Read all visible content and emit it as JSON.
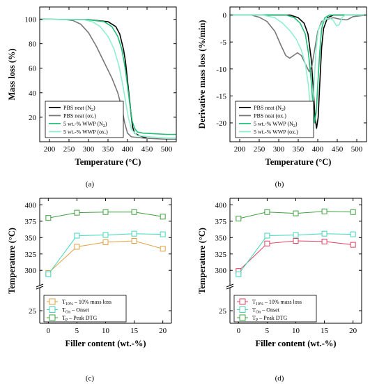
{
  "chart_data": [
    {
      "panel": "(a)",
      "type": "line",
      "xlabel": "Temperature (°C)",
      "ylabel": "Mass loss (%)",
      "xlim": [
        175,
        525
      ],
      "ylim": [
        0,
        110
      ],
      "xticks": [
        200,
        250,
        300,
        350,
        400,
        450,
        500
      ],
      "yticks": [
        20,
        40,
        60,
        80,
        100
      ],
      "legend_position": "bottom-left",
      "series": [
        {
          "name": "PBS neat (N2)",
          "label": {
            "main": "PBS neat (N",
            "sub": "2",
            "tail": ")"
          },
          "color": "#000000",
          "points": [
            [
              175,
              100
            ],
            [
              300,
              99.6
            ],
            [
              350,
              98
            ],
            [
              370,
              94
            ],
            [
              380,
              88
            ],
            [
              390,
              75
            ],
            [
              395,
              65
            ],
            [
              400,
              50
            ],
            [
              405,
              35
            ],
            [
              410,
              20
            ],
            [
              413,
              12
            ],
            [
              418,
              7
            ],
            [
              430,
              5
            ],
            [
              440,
              4
            ],
            [
              450,
              3
            ]
          ]
        },
        {
          "name": "PBS neat (ox.)",
          "label": {
            "main": "PBS neat (ox.)",
            "sub": "",
            "tail": ""
          },
          "color": "#777777",
          "points": [
            [
              175,
              100
            ],
            [
              240,
              99.8
            ],
            [
              260,
              99
            ],
            [
              280,
              96
            ],
            [
              300,
              89
            ],
            [
              320,
              78
            ],
            [
              340,
              65
            ],
            [
              360,
              52
            ],
            [
              375,
              40
            ],
            [
              385,
              28
            ],
            [
              393,
              15
            ],
            [
              400,
              7
            ],
            [
              410,
              4
            ],
            [
              440,
              3
            ],
            [
              470,
              2.5
            ],
            [
              500,
              2
            ],
            [
              525,
              2
            ]
          ]
        },
        {
          "name": "5 wt.-% WWP (N2)",
          "label": {
            "main": "5 wt.-% WWP (N",
            "sub": "2",
            "tail": ")"
          },
          "color": "#1fbf76",
          "points": [
            [
              175,
              100
            ],
            [
              300,
              99.6
            ],
            [
              340,
              98
            ],
            [
              360,
              94
            ],
            [
              375,
              86
            ],
            [
              385,
              76
            ],
            [
              393,
              62
            ],
            [
              400,
              46
            ],
            [
              406,
              30
            ],
            [
              412,
              17
            ],
            [
              418,
              11
            ],
            [
              425,
              8
            ],
            [
              440,
              7
            ],
            [
              470,
              6.5
            ],
            [
              500,
              6
            ],
            [
              525,
              6
            ]
          ]
        },
        {
          "name": "5 wt.-% WWP (ox.)",
          "label": {
            "main": "5 wt.-% WWP (ox.)",
            "sub": "",
            "tail": ""
          },
          "color": "#8ff0cf",
          "points": [
            [
              175,
              100
            ],
            [
              290,
              99.5
            ],
            [
              310,
              98
            ],
            [
              330,
              94
            ],
            [
              350,
              86
            ],
            [
              365,
              76
            ],
            [
              378,
              62
            ],
            [
              388,
              46
            ],
            [
              395,
              33
            ],
            [
              402,
              20
            ],
            [
              410,
              10
            ],
            [
              425,
              5
            ],
            [
              460,
              4
            ],
            [
              500,
              3
            ],
            [
              525,
              3
            ]
          ]
        }
      ]
    },
    {
      "panel": "(b)",
      "type": "line",
      "xlabel": "Temperature (°C)",
      "ylabel": "Derivative mass loss (%/min)",
      "xlim": [
        175,
        525
      ],
      "ylim": [
        -23.5,
        1.5
      ],
      "xticks": [
        200,
        250,
        300,
        350,
        400,
        450,
        500
      ],
      "yticks": [
        0,
        -5,
        -10,
        -15,
        -20
      ],
      "legend_position": "bottom-left",
      "series": [
        {
          "name": "PBS neat (N2)",
          "label": {
            "main": "PBS neat (N",
            "sub": "2",
            "tail": ")"
          },
          "color": "#000000",
          "points": [
            [
              175,
              0
            ],
            [
              330,
              0
            ],
            [
              350,
              -0.5
            ],
            [
              365,
              -1.5
            ],
            [
              375,
              -3.5
            ],
            [
              383,
              -8
            ],
            [
              388,
              -13
            ],
            [
              393,
              -19
            ],
            [
              397,
              -21
            ],
            [
              401,
              -19
            ],
            [
              405,
              -13
            ],
            [
              410,
              -6
            ],
            [
              415,
              -2.5
            ],
            [
              425,
              -0.5
            ],
            [
              440,
              0
            ],
            [
              525,
              0
            ]
          ]
        },
        {
          "name": "PBS neat (ox.)",
          "label": {
            "main": "PBS neat (ox.)",
            "sub": "",
            "tail": ""
          },
          "color": "#777777",
          "points": [
            [
              175,
              0
            ],
            [
              230,
              0
            ],
            [
              250,
              -0.4
            ],
            [
              270,
              -1.2
            ],
            [
              290,
              -3
            ],
            [
              305,
              -5.5
            ],
            [
              318,
              -7.5
            ],
            [
              328,
              -8
            ],
            [
              338,
              -7.5
            ],
            [
              348,
              -7
            ],
            [
              358,
              -7.5
            ],
            [
              368,
              -9
            ],
            [
              378,
              -10.5
            ],
            [
              385,
              -9.5
            ],
            [
              393,
              -6
            ],
            [
              400,
              -3
            ],
            [
              410,
              -1.2
            ],
            [
              420,
              -0.8
            ],
            [
              440,
              -0.5
            ],
            [
              460,
              -0.8
            ],
            [
              475,
              -0.9
            ],
            [
              490,
              -0.3
            ],
            [
              525,
              0
            ]
          ]
        },
        {
          "name": "5 wt.-% WWP (N2)",
          "label": {
            "main": "5 wt.-% WWP (N",
            "sub": "2",
            "tail": ")"
          },
          "color": "#1fbf76",
          "points": [
            [
              175,
              0
            ],
            [
              320,
              0
            ],
            [
              340,
              -0.5
            ],
            [
              355,
              -1.5
            ],
            [
              368,
              -3.5
            ],
            [
              376,
              -7
            ],
            [
              383,
              -12
            ],
            [
              388,
              -17
            ],
            [
              392,
              -20
            ],
            [
              396,
              -18
            ],
            [
              400,
              -13
            ],
            [
              405,
              -7
            ],
            [
              410,
              -2.5
            ],
            [
              418,
              -0.5
            ],
            [
              430,
              0
            ],
            [
              525,
              0
            ]
          ]
        },
        {
          "name": "5 wt.-% WWP (ox.)",
          "label": {
            "main": "5 wt.-% WWP (ox.)",
            "sub": "",
            "tail": ""
          },
          "color": "#8ff0cf",
          "points": [
            [
              175,
              0
            ],
            [
              260,
              0
            ],
            [
              290,
              -0.5
            ],
            [
              310,
              -1.5
            ],
            [
              330,
              -3
            ],
            [
              345,
              -4.5
            ],
            [
              358,
              -6.5
            ],
            [
              368,
              -9
            ],
            [
              376,
              -13
            ],
            [
              381,
              -17
            ],
            [
              384,
              -20
            ],
            [
              387,
              -18
            ],
            [
              391,
              -12
            ],
            [
              396,
              -6
            ],
            [
              402,
              -2.5
            ],
            [
              415,
              -1
            ],
            [
              430,
              -0.5
            ],
            [
              440,
              -1
            ],
            [
              448,
              -2
            ],
            [
              455,
              -1.8
            ],
            [
              462,
              -0.5
            ],
            [
              470,
              0
            ],
            [
              525,
              0
            ]
          ]
        }
      ]
    },
    {
      "panel": "(c)",
      "type": "line",
      "xlabel": "Filler content (wt.-%)",
      "ylabel": "Temperature (°C)",
      "x": [
        0,
        5,
        10,
        15,
        20
      ],
      "xticks": [
        0,
        5,
        10,
        15,
        20
      ],
      "yticks": [
        25,
        300,
        325,
        350,
        375,
        400
      ],
      "y_axis_break": [
        50,
        280
      ],
      "legend_position": "bottom-left",
      "series": [
        {
          "name": "T10% – 10% mass loss",
          "label": {
            "main": "T",
            "sub": "10%",
            "tail": " – 10% mass loss"
          },
          "color": "#e0a040",
          "values": [
            296,
            336,
            343,
            345,
            333
          ]
        },
        {
          "name": "TOn – Onset",
          "label": {
            "main": "T",
            "sub": "On",
            "tail": " – Onset"
          },
          "color": "#40d8b8",
          "values": [
            294,
            353,
            354,
            356,
            355
          ]
        },
        {
          "name": "TP – Peak DTG",
          "label": {
            "main": "T",
            "sub": "P",
            "tail": " – Peak DTG"
          },
          "color": "#3fa040",
          "values": [
            380,
            388,
            389,
            389,
            382
          ]
        }
      ]
    },
    {
      "panel": "(d)",
      "type": "line",
      "xlabel": "Filler content (wt.-%)",
      "ylabel": "Temperature (°C)",
      "x": [
        0,
        5,
        10,
        15,
        20
      ],
      "xticks": [
        0,
        5,
        10,
        15,
        20
      ],
      "yticks": [
        25,
        300,
        325,
        350,
        375,
        400
      ],
      "y_axis_break": [
        50,
        280
      ],
      "legend_position": "bottom-left",
      "series": [
        {
          "name": "T10% – 10% mass loss",
          "label": {
            "main": "T",
            "sub": "10%",
            "tail": " – 10% mass loss"
          },
          "color": "#e04060",
          "values": [
            299,
            341,
            345,
            344,
            339
          ]
        },
        {
          "name": "TOn – Onset",
          "label": {
            "main": "T",
            "sub": "On",
            "tail": " – Onset"
          },
          "color": "#40d8b8",
          "values": [
            294,
            353,
            354,
            356,
            355
          ]
        },
        {
          "name": "TP – Peak DTG",
          "label": {
            "main": "T",
            "sub": "P",
            "tail": " – Peak DTG"
          },
          "color": "#3fa040",
          "values": [
            379,
            389,
            387,
            390,
            389
          ]
        }
      ]
    }
  ]
}
